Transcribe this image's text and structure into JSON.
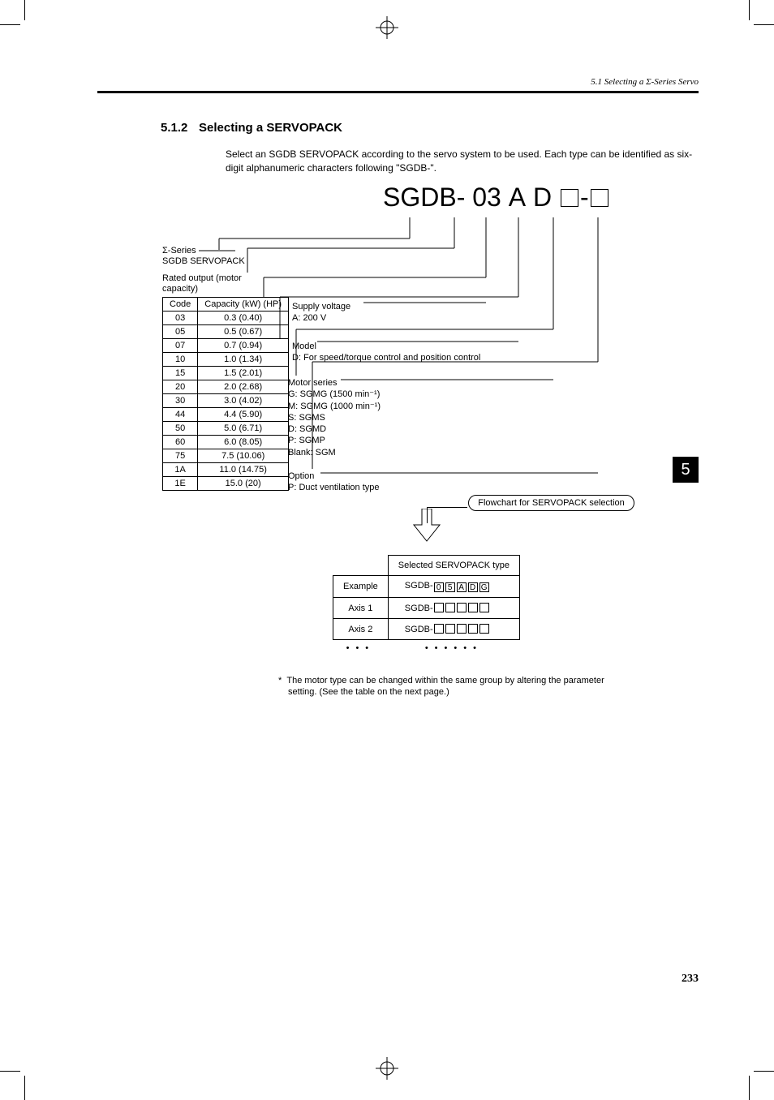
{
  "header": "5.1 Selecting a Σ-Series Servo",
  "section_number": "5.1.2",
  "section_title": "Selecting a SERVOPACK",
  "intro": "Select an SGDB SERVOPACK according to the servo system to be used.  Each type can be identified as six-digit alphanumeric characters following \"SGDB-\".",
  "model_prefix": "SGDB-",
  "model_digits": [
    "03",
    "A",
    "D"
  ],
  "series_label_1": "Σ-Series",
  "series_label_2": "SGDB SERVOPACK",
  "rated_label": "Rated output (motor capacity)",
  "cap_table": {
    "head_code": "Code",
    "head_cap": "Capacity (kW) (HP)",
    "rows": [
      {
        "code": "03",
        "cap": "0.3 (0.40)"
      },
      {
        "code": "05",
        "cap": "0.5 (0.67)"
      },
      {
        "code": "07",
        "cap": "0.7 (0.94)"
      },
      {
        "code": "10",
        "cap": "1.0 (1.34)"
      },
      {
        "code": "15",
        "cap": "1.5 (2.01)"
      },
      {
        "code": "20",
        "cap": "2.0 (2.68)"
      },
      {
        "code": "30",
        "cap": "3.0 (4.02)"
      },
      {
        "code": "44",
        "cap": "4.4 (5.90)"
      },
      {
        "code": "50",
        "cap": "5.0 (6.71)"
      },
      {
        "code": "60",
        "cap": "6.0 (8.05)"
      },
      {
        "code": "75",
        "cap": "7.5 (10.06)"
      },
      {
        "code": "1A",
        "cap": "11.0 (14.75)"
      },
      {
        "code": "1E",
        "cap": "15.0 (20)"
      }
    ]
  },
  "supply": {
    "title": "Supply voltage",
    "line": "A:  200 V"
  },
  "model": {
    "title": "Model",
    "line": "D:  For speed/torque control and position control"
  },
  "motor_series": {
    "title": "Motor series",
    "lines": [
      "G:  SGMG (1500 min⁻¹)",
      "M:  SGMG (1000 min⁻¹)",
      "S:  SGMS",
      "D:  SGMD",
      "P:  SGMP",
      "Blank: SGM"
    ]
  },
  "option": {
    "title": "Option",
    "line": "P:  Duct ventilation type"
  },
  "flow_label": "Flowchart for SERVOPACK selection",
  "sel_table": {
    "head": "Selected SERVOPACK type",
    "rows": [
      {
        "label": "Example",
        "prefix": "SGDB-",
        "vals": [
          "0",
          "5",
          "A",
          "D",
          "G"
        ]
      },
      {
        "label": "Axis 1",
        "prefix": "SGDB-",
        "vals": [
          "",
          "",
          "",
          "",
          ""
        ]
      },
      {
        "label": "Axis 2",
        "prefix": "SGDB-",
        "vals": [
          "",
          "",
          "",
          "",
          ""
        ]
      }
    ]
  },
  "footnote_marker": "*",
  "footnote": "The motor type can be changed within the same group by altering the parameter setting.  (See the table on the next page.)",
  "thumb": "5",
  "page": "233"
}
